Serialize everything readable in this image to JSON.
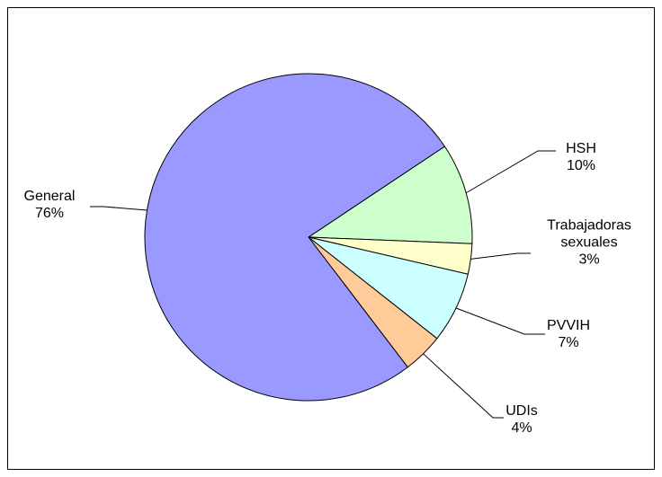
{
  "chart_data": {
    "type": "pie",
    "categories": [
      "HSH",
      "Trabajadoras sexuales",
      "PVVIH",
      "UDIs",
      "General"
    ],
    "values": [
      10,
      3,
      7,
      4,
      76
    ],
    "value_labels": [
      "10%",
      "3%",
      "7%",
      "4%",
      "76%"
    ],
    "colors": [
      "#ccffcc",
      "#ffffcc",
      "#ccffff",
      "#ffcc99",
      "#9999ff"
    ]
  }
}
